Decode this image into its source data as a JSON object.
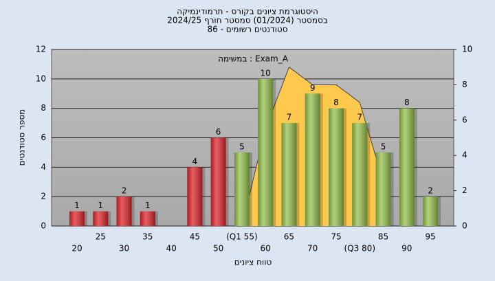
{
  "chart_data": {
    "type": "bar",
    "title": [
      "היסטוגרמת ציונים בקורס - תרמודינמיקה",
      "בסמסטר (01/2024) סמסטר חורף 2024/25",
      "סטודנטים רשומים - 86"
    ],
    "annotation": "במשימה : Exam_A",
    "x_label": "טווח ציונים",
    "y_label": "מספר סטודנטים",
    "categories": [
      "20",
      "25",
      "30",
      "35",
      "40",
      "45",
      "50",
      "(Q1 55)",
      "60",
      "65",
      "70",
      "75",
      "(Q3 80)",
      "85",
      "90",
      "95"
    ],
    "values": [
      1,
      1,
      2,
      1,
      null,
      4,
      6,
      5,
      10,
      7,
      9,
      8,
      7,
      5,
      8,
      2
    ],
    "bar_colors": [
      "#e0262c",
      "#e0262c",
      "#e0262c",
      "#e0262c",
      "#e0262c",
      "#e0262c",
      "#e0262c",
      "#96c24e",
      "#96c24e",
      "#96c24e",
      "#96c24e",
      "#96c24e",
      "#96c24e",
      "#96c24e",
      "#96c24e",
      "#96c24e"
    ],
    "area": {
      "color": "#ffc94d",
      "axis": "y2",
      "values": [
        null,
        null,
        null,
        null,
        null,
        null,
        null,
        0,
        5.5,
        9,
        8,
        8,
        7,
        2.5,
        null,
        null
      ]
    },
    "ylim": [
      0,
      12
    ],
    "yticks": [
      0,
      2,
      4,
      6,
      8,
      10,
      12
    ],
    "y2lim": [
      0,
      10
    ],
    "y2ticks": [
      0,
      2,
      4,
      6,
      8,
      10
    ],
    "grid": true
  }
}
